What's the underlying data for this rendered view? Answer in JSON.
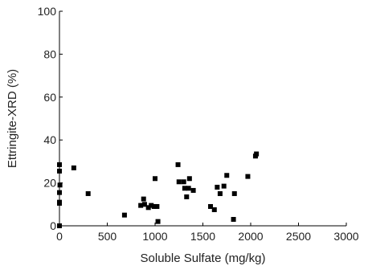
{
  "chart_data": {
    "type": "scatter",
    "xlabel": "Soluble Sulfate (mg/kg)",
    "ylabel": "Ettringite-XRD (%)",
    "xlim": [
      0,
      3000
    ],
    "ylim": [
      0,
      100
    ],
    "xticks": [
      0,
      500,
      1000,
      1500,
      2000,
      2500,
      3000
    ],
    "yticks": [
      0,
      20,
      40,
      60,
      80,
      100
    ],
    "grid": false,
    "marker": "filled-square",
    "marker_color": "#000000",
    "points": [
      [
        0,
        0
      ],
      [
        0,
        11
      ],
      [
        0,
        10.5
      ],
      [
        0,
        15.5
      ],
      [
        5,
        19
      ],
      [
        0,
        25.5
      ],
      [
        0,
        28.5
      ],
      [
        150,
        27
      ],
      [
        300,
        15
      ],
      [
        680,
        5
      ],
      [
        850,
        9.5
      ],
      [
        880,
        12.5
      ],
      [
        890,
        10
      ],
      [
        930,
        8.5
      ],
      [
        960,
        9.5
      ],
      [
        990,
        9
      ],
      [
        1000,
        22
      ],
      [
        1020,
        9
      ],
      [
        1030,
        2
      ],
      [
        1240,
        28.5
      ],
      [
        1250,
        20.5
      ],
      [
        1300,
        20.5
      ],
      [
        1310,
        17.5
      ],
      [
        1330,
        13.5
      ],
      [
        1350,
        17.5
      ],
      [
        1360,
        22
      ],
      [
        1400,
        16.5
      ],
      [
        1580,
        9
      ],
      [
        1620,
        7.5
      ],
      [
        1650,
        18
      ],
      [
        1680,
        15
      ],
      [
        1720,
        18.5
      ],
      [
        1750,
        23.5
      ],
      [
        1820,
        3
      ],
      [
        1830,
        15
      ],
      [
        1970,
        23
      ],
      [
        2050,
        32.5
      ],
      [
        2060,
        33.5
      ]
    ]
  }
}
